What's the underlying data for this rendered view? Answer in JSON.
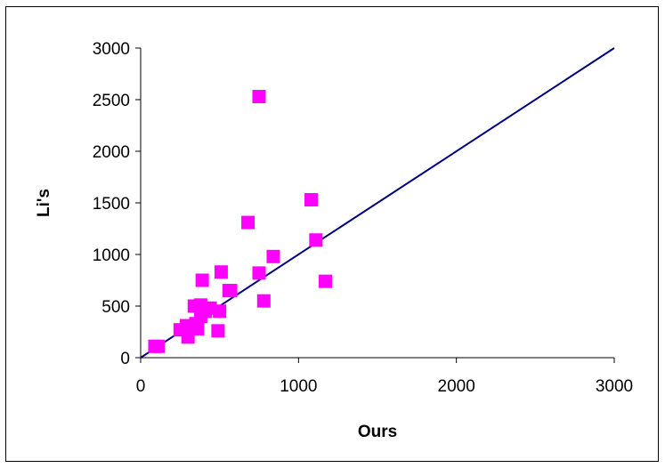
{
  "chart_data": {
    "type": "scatter",
    "title": "",
    "xlabel": "Ours",
    "ylabel": "Li's",
    "xlim": [
      0,
      3000
    ],
    "ylim": [
      0,
      3000
    ],
    "x_ticks": [
      "0",
      "1000",
      "2000",
      "3000"
    ],
    "y_ticks": [
      "0",
      "500",
      "1000",
      "1500",
      "2000",
      "2500",
      "3000"
    ],
    "grid": false,
    "legend": "none",
    "marker_color": "#FF00FF",
    "line_color": "#000080",
    "reference_line": {
      "x": [
        0,
        3000
      ],
      "y": [
        0,
        3000
      ]
    },
    "points": [
      [
        90,
        110
      ],
      [
        110,
        110
      ],
      [
        250,
        270
      ],
      [
        290,
        310
      ],
      [
        300,
        200
      ],
      [
        320,
        290
      ],
      [
        340,
        500
      ],
      [
        350,
        330
      ],
      [
        360,
        280
      ],
      [
        380,
        400
      ],
      [
        380,
        510
      ],
      [
        390,
        750
      ],
      [
        410,
        450
      ],
      [
        440,
        480
      ],
      [
        490,
        260
      ],
      [
        500,
        450
      ],
      [
        510,
        830
      ],
      [
        560,
        650
      ],
      [
        570,
        650
      ],
      [
        680,
        1310
      ],
      [
        750,
        2530
      ],
      [
        750,
        820
      ],
      [
        780,
        550
      ],
      [
        840,
        980
      ],
      [
        1080,
        1530
      ],
      [
        1110,
        1140
      ],
      [
        1170,
        740
      ]
    ]
  }
}
